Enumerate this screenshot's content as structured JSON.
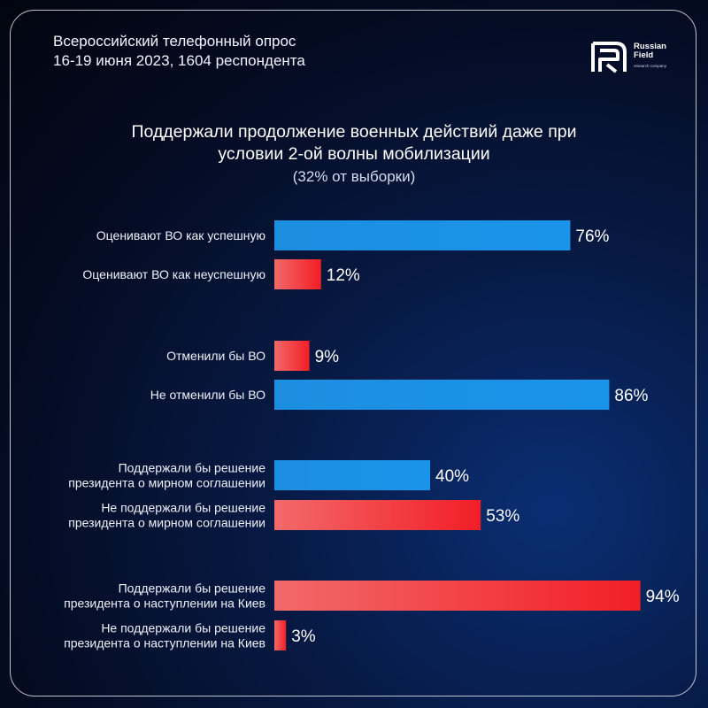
{
  "header": {
    "line1": "Всероссийский телефонный опрос",
    "line2": "16-19 июня 2023, 1604 респондента"
  },
  "logo": {
    "line1": "Russian",
    "line2": "Field",
    "sub": "research company"
  },
  "chart_data": {
    "type": "bar",
    "orientation": "horizontal",
    "title_line1": "Поддержали продолжение военных действий даже при",
    "title_line2": "условии 2-ой волны мобилизации",
    "subtitle": "(32% от выборки)",
    "xlim": [
      0,
      100
    ],
    "grid": false,
    "colors": {
      "blue": "#1a8fe0",
      "red": "#f23a3a"
    },
    "bars": [
      {
        "label": [
          "Оценивают ВО как успешную"
        ],
        "value": 76,
        "value_label": "76%",
        "color": "blue"
      },
      {
        "label": [
          "Оценивают ВО как неуспешную"
        ],
        "value": 12,
        "value_label": "12%",
        "color": "red"
      },
      {
        "label": [
          "Отменили бы ВО"
        ],
        "value": 9,
        "value_label": "9%",
        "color": "red"
      },
      {
        "label": [
          "Не отменили бы ВО"
        ],
        "value": 86,
        "value_label": "86%",
        "color": "blue"
      },
      {
        "label": [
          "Поддержали бы решение",
          "президента о мирном соглашении"
        ],
        "value": 40,
        "value_label": "40%",
        "color": "blue"
      },
      {
        "label": [
          "Не поддержали бы решение",
          "президента о мирном соглашении"
        ],
        "value": 53,
        "value_label": "53%",
        "color": "red"
      },
      {
        "label": [
          "Поддержали бы решение",
          "президента о наступлении на Киев"
        ],
        "value": 94,
        "value_label": "94%",
        "color": "red"
      },
      {
        "label": [
          "Не поддержали бы решение",
          "президента о наступлении на Киев"
        ],
        "value": 3,
        "value_label": "3%",
        "color": "red"
      }
    ]
  }
}
